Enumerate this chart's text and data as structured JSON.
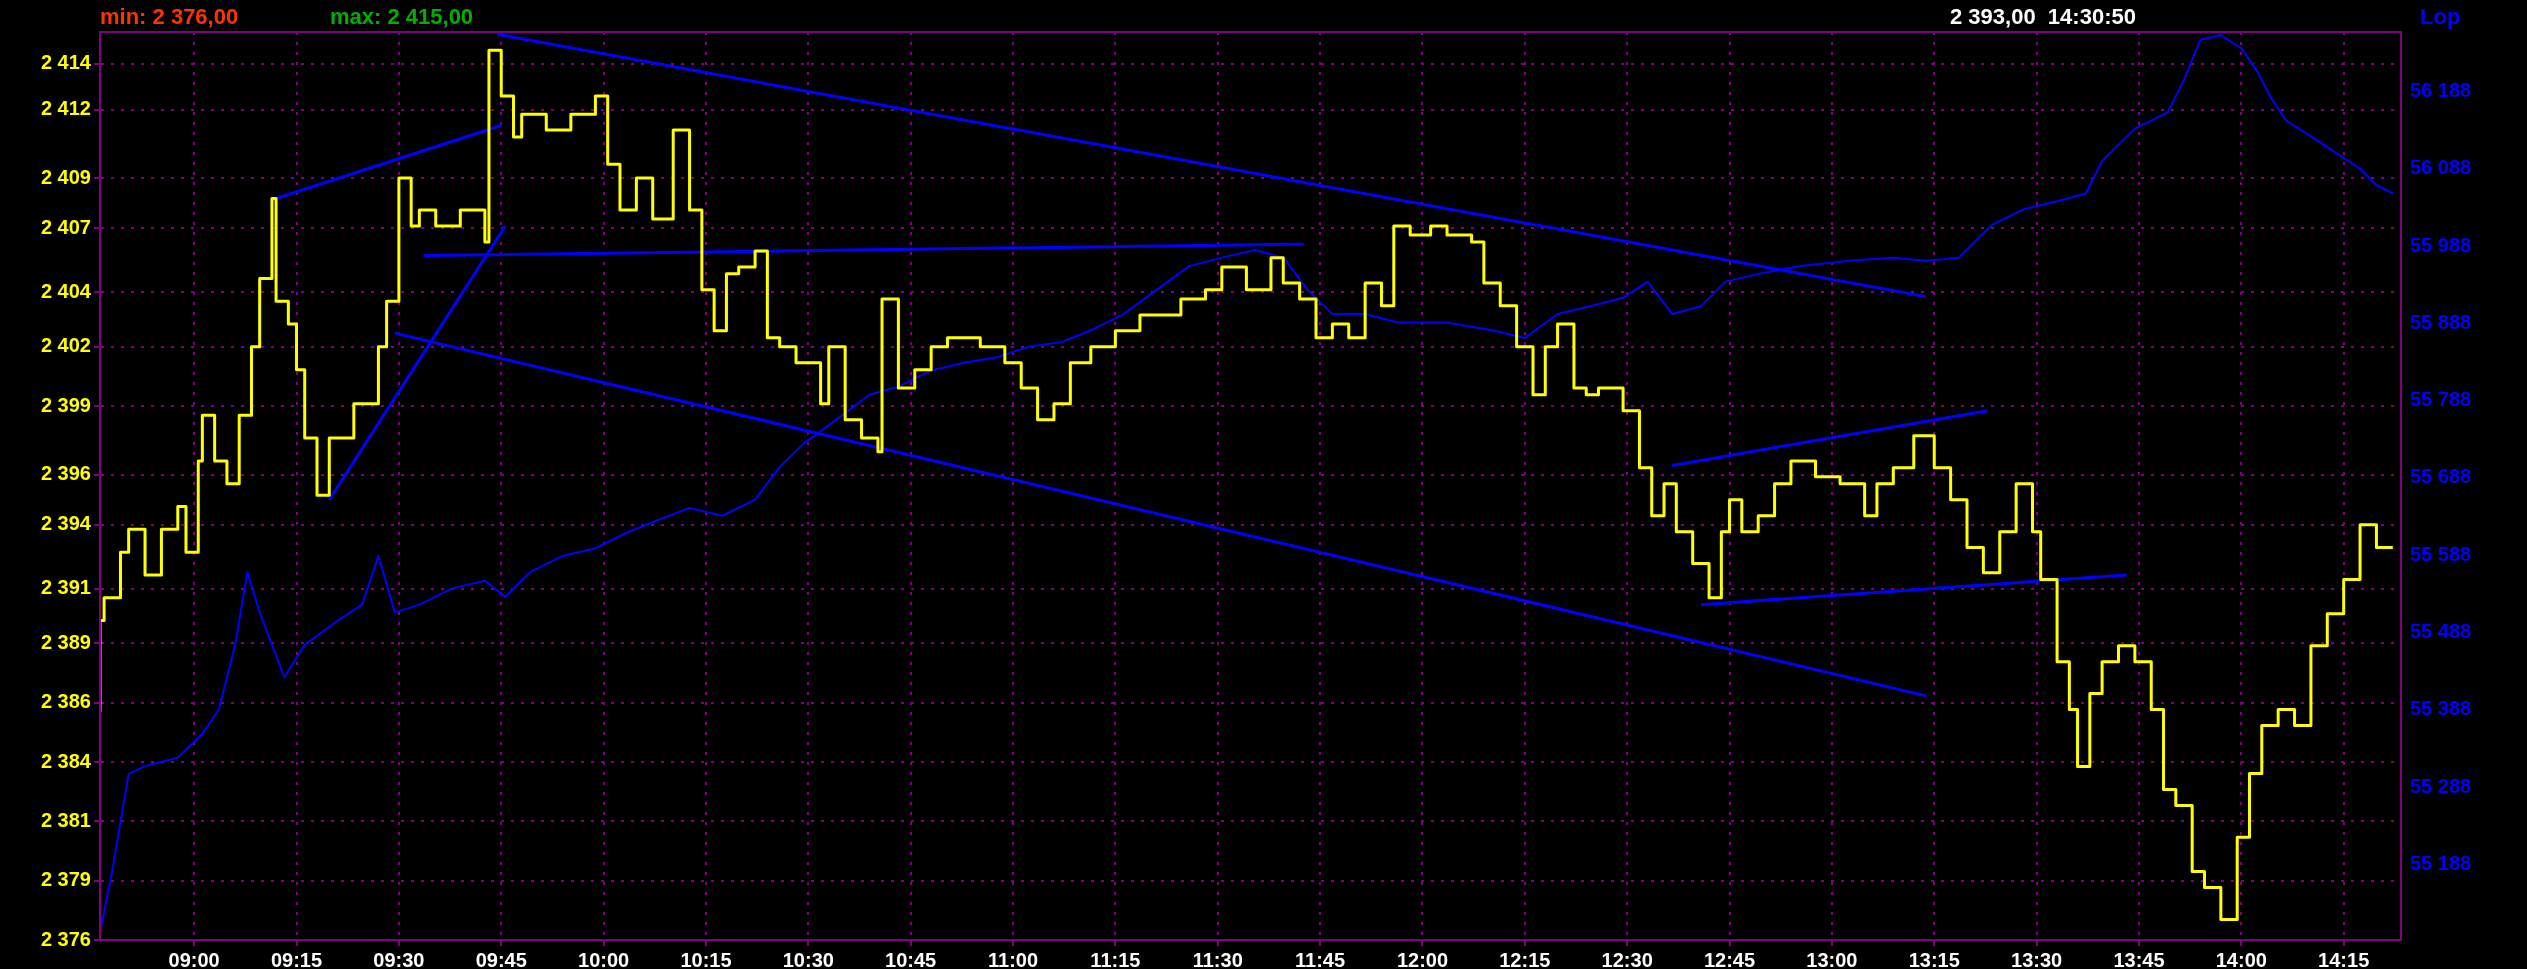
{
  "chart_data": {
    "type": "line",
    "y2label": "Lop",
    "annotations": [
      "min: 2 376,00",
      "max: 2 415,00",
      "2 393,00  14:30:50"
    ],
    "xlim": [
      8.77,
      14.39
    ],
    "xticks": [
      {
        "value": 9,
        "label": "09:00"
      },
      {
        "value": 9.25,
        "label": "09:15"
      },
      {
        "value": 9.5,
        "label": "09:30"
      },
      {
        "value": 9.75,
        "label": "09:45"
      },
      {
        "value": 10,
        "label": "10:00"
      },
      {
        "value": 10.25,
        "label": "10:15"
      },
      {
        "value": 10.5,
        "label": "10:30"
      },
      {
        "value": 10.75,
        "label": "10:45"
      },
      {
        "value": 11,
        "label": "11:00"
      },
      {
        "value": 11.25,
        "label": "11:15"
      },
      {
        "value": 11.5,
        "label": "11:30"
      },
      {
        "value": 11.75,
        "label": "11:45"
      },
      {
        "value": 12,
        "label": "12:00"
      },
      {
        "value": 12.25,
        "label": "12:15"
      },
      {
        "value": 12.5,
        "label": "12:30"
      },
      {
        "value": 12.75,
        "label": "12:45"
      },
      {
        "value": 13,
        "label": "13:00"
      },
      {
        "value": 13.25,
        "label": "13:15"
      },
      {
        "value": 13.5,
        "label": "13:30"
      },
      {
        "value": 13.75,
        "label": "13:45"
      },
      {
        "value": 14,
        "label": "14:00"
      },
      {
        "value": 14.25,
        "label": "14:15"
      }
    ],
    "ylim": [
      2376,
      2415.8
    ],
    "yticks": [
      {
        "value": 2376,
        "label": "2 376"
      },
      {
        "value": 2378.6,
        "label": "2 379"
      },
      {
        "value": 2381.2,
        "label": "2 381"
      },
      {
        "value": 2383.8,
        "label": "2 384"
      },
      {
        "value": 2386.4,
        "label": "2 386"
      },
      {
        "value": 2389,
        "label": "2 389"
      },
      {
        "value": 2391.4,
        "label": "2 391"
      },
      {
        "value": 2394.2,
        "label": "2 394"
      },
      {
        "value": 2396.4,
        "label": "2 396"
      },
      {
        "value": 2399.4,
        "label": "2 399"
      },
      {
        "value": 2402,
        "label": "2 402"
      },
      {
        "value": 2404.4,
        "label": "2 404"
      },
      {
        "value": 2407.2,
        "label": "2 407"
      },
      {
        "value": 2409.4,
        "label": "2 409"
      },
      {
        "value": 2412.4,
        "label": "2 412"
      },
      {
        "value": 2414.4,
        "label": "2 414"
      }
    ],
    "y2lim": [
      55090,
      56265
    ],
    "y2ticks": [
      {
        "value": 55188,
        "label": "55 188"
      },
      {
        "value": 55288,
        "label": "55 288"
      },
      {
        "value": 55388,
        "label": "55 388"
      },
      {
        "value": 55488,
        "label": "55 488"
      },
      {
        "value": 55588,
        "label": "55 588"
      },
      {
        "value": 55688,
        "label": "55 688"
      },
      {
        "value": 55788,
        "label": "55 788"
      },
      {
        "value": 55888,
        "label": "55 888"
      },
      {
        "value": 55988,
        "label": "55 988"
      },
      {
        "value": 56088,
        "label": "56 088"
      },
      {
        "value": 56188,
        "label": "56 188"
      }
    ],
    "grid": true,
    "series": [
      {
        "type": "step",
        "color": "#ffff00",
        "x": [
          8.77,
          8.78,
          8.82,
          8.84,
          8.88,
          8.92,
          8.96,
          8.98,
          9.01,
          9.02,
          9.05,
          9.08,
          9.11,
          9.14,
          9.16,
          9.19,
          9.2,
          9.23,
          9.25,
          9.27,
          9.3,
          9.33,
          9.36,
          9.39,
          9.45,
          9.47,
          9.5,
          9.53,
          9.55,
          9.59,
          9.65,
          9.71,
          9.72,
          9.75,
          9.78,
          9.8,
          9.86,
          9.92,
          9.98,
          10.01,
          10.04,
          10.08,
          10.12,
          10.17,
          10.21,
          10.24,
          10.27,
          10.3,
          10.33,
          10.37,
          10.4,
          10.43,
          10.47,
          10.53,
          10.55,
          10.59,
          10.63,
          10.67,
          10.68,
          10.72,
          10.76,
          10.8,
          10.84,
          10.92,
          10.98,
          11.02,
          11.06,
          11.1,
          11.14,
          11.19,
          11.25,
          11.31,
          11.35,
          11.41,
          11.47,
          11.51,
          11.57,
          11.63,
          11.66,
          11.7,
          11.74,
          11.78,
          11.82,
          11.86,
          11.9,
          11.93,
          11.97,
          12.02,
          12.06,
          12.12,
          12.15,
          12.19,
          12.23,
          12.27,
          12.3,
          12.33,
          12.37,
          12.4,
          12.43,
          12.49,
          12.53,
          12.56,
          12.59,
          12.62,
          12.66,
          12.7,
          12.73,
          12.75,
          12.78,
          12.82,
          12.86,
          12.9,
          12.96,
          13.02,
          13.08,
          13.11,
          13.15,
          13.2,
          13.25,
          13.29,
          13.33,
          13.37,
          13.41,
          13.45,
          13.49,
          13.51,
          13.55,
          13.58,
          13.6,
          13.63,
          13.66,
          13.7,
          13.74,
          13.78,
          13.81,
          13.84,
          13.88,
          13.91,
          13.95,
          13.99,
          14.02,
          14.05,
          14.09,
          14.13,
          14.17,
          14.21,
          14.25,
          14.29,
          14.33,
          14.37
        ],
        "values": [
          2386,
          2390,
          2391,
          2393,
          2394,
          2392,
          2394,
          2395,
          2393,
          2397,
          2399,
          2397,
          2396,
          2399,
          2402,
          2405,
          2408.5,
          2404,
          2403,
          2401,
          2398,
          2395.5,
          2398,
          2398,
          2399.5,
          2402,
          2404,
          2409.4,
          2407.3,
          2408,
          2407.3,
          2408,
          2406.6,
          2415,
          2413,
          2411.2,
          2412.2,
          2411.5,
          2412.2,
          2413,
          2410,
          2408,
          2409.4,
          2407.6,
          2411.5,
          2408,
          2404.5,
          2402.7,
          2405.2,
          2405.5,
          2406.2,
          2402.4,
          2402,
          2401.3,
          2399.5,
          2402,
          2398.8,
          2398,
          2397.4,
          2404.1,
          2400.2,
          2401,
          2402,
          2402.4,
          2402,
          2401.3,
          2400.2,
          2398.8,
          2399.5,
          2401.3,
          2402,
          2402.7,
          2403.4,
          2403.4,
          2404.1,
          2404.5,
          2405.5,
          2404.5,
          2405.9,
          2404.8,
          2404.1,
          2402.4,
          2403,
          2402.4,
          2404.8,
          2403.8,
          2407.3,
          2406.9,
          2407.3,
          2406.9,
          2406.6,
          2404.8,
          2403.8,
          2402,
          2399.9,
          2402,
          2403,
          2400.2,
          2399.9,
          2400.2,
          2399.2,
          2396.7,
          2394.6,
          2396,
          2393.9,
          2392.5,
          2391,
          2393.9,
          2395.3,
          2393.9,
          2394.6,
          2396,
          2397,
          2396.3,
          2396,
          2394.6,
          2396,
          2396.7,
          2398.1,
          2396.7,
          2395.3,
          2393.2,
          2392.1,
          2393.9,
          2396,
          2393.9,
          2391.8,
          2388.2,
          2386.1,
          2383.6,
          2386.8,
          2388.2,
          2388.9,
          2388.2,
          2386.1,
          2382.6,
          2381.9,
          2379,
          2378.3,
          2376.9,
          2380.5,
          2383.3,
          2385.4,
          2386.1,
          2385.4,
          2388.9,
          2390.3,
          2391.8,
          2394.2,
          2393.2
        ]
      },
      {
        "type": "line",
        "axis": "y2",
        "color": "#0000ff",
        "x": [
          8.77,
          8.8,
          8.84,
          8.88,
          8.96,
          9.02,
          9.06,
          9.1,
          9.13,
          9.16,
          9.22,
          9.27,
          9.35,
          9.41,
          9.45,
          9.49,
          9.55,
          9.63,
          9.71,
          9.76,
          9.82,
          9.9,
          9.98,
          10.06,
          10.14,
          10.21,
          10.29,
          10.37,
          10.43,
          10.49,
          10.57,
          10.65,
          10.72,
          10.8,
          10.88,
          10.96,
          11.04,
          11.12,
          11.19,
          11.27,
          11.35,
          11.43,
          11.51,
          11.59,
          11.66,
          11.72,
          11.78,
          11.86,
          11.94,
          12.06,
          12.17,
          12.25,
          12.33,
          12.41,
          12.49,
          12.55,
          12.61,
          12.68,
          12.74,
          12.82,
          12.92,
          13.04,
          13.15,
          13.23,
          13.31,
          13.39,
          13.47,
          13.55,
          13.62,
          13.66,
          13.74,
          13.82,
          13.86,
          13.9,
          13.95,
          14.0,
          14.04,
          14.07,
          14.11,
          14.17,
          14.23,
          14.29,
          14.33,
          14.37
        ],
        "values": [
          55100,
          55180,
          55305,
          55315,
          55326,
          55357,
          55388,
          55472,
          55566,
          55514,
          55430,
          55472,
          55503,
          55524,
          55587,
          55514,
          55524,
          55545,
          55555,
          55534,
          55566,
          55587,
          55597,
          55618,
          55635,
          55649,
          55639,
          55660,
          55702,
          55733,
          55764,
          55796,
          55806,
          55827,
          55837,
          55844,
          55858,
          55864,
          55879,
          55900,
          55931,
          55962,
          55973,
          55983,
          55973,
          55931,
          55900,
          55900,
          55889,
          55889,
          55879,
          55869,
          55900,
          55910,
          55921,
          55942,
          55900,
          55910,
          55942,
          55952,
          55962,
          55969,
          55973,
          55969,
          55973,
          56015,
          56036,
          56046,
          56056,
          56098,
          56140,
          56161,
          56203,
          56255,
          56261,
          56244,
          56213,
          56182,
          56150,
          56130,
          56109,
          56088,
          56067,
          56056
        ]
      },
      {
        "type": "line",
        "color": "#0000ff",
        "x": [
          9.2,
          9.75
        ],
        "values": [
          2408.5,
          2411.7
        ]
      },
      {
        "type": "line",
        "color": "#0000ff",
        "x": [
          9.33,
          9.76
        ],
        "values": [
          2395.3,
          2407.3
        ]
      },
      {
        "type": "line",
        "color": "#0000ff",
        "x": [
          9.56,
          11.71
        ],
        "values": [
          2406,
          2406.5
        ]
      },
      {
        "type": "line",
        "color": "#0000ff",
        "x": [
          9.74,
          13.23
        ],
        "values": [
          2415.7,
          2404.2
        ]
      },
      {
        "type": "line",
        "color": "#0000ff",
        "x": [
          9.49,
          13.23
        ],
        "values": [
          2402.6,
          2386.7
        ]
      },
      {
        "type": "line",
        "color": "#0000ff",
        "x": [
          12.61,
          13.38
        ],
        "values": [
          2396.8,
          2399.2
        ]
      },
      {
        "type": "line",
        "color": "#0000ff",
        "x": [
          12.68,
          13.72
        ],
        "values": [
          2390.7,
          2392
        ]
      }
    ]
  }
}
